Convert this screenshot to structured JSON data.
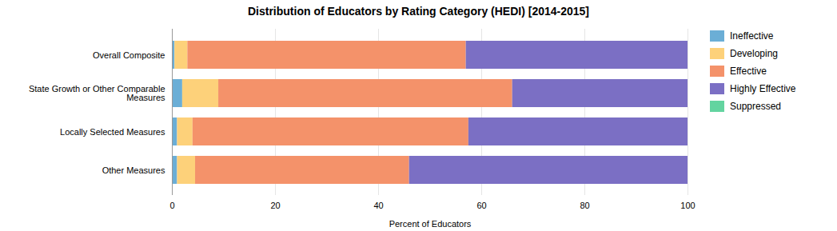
{
  "chart_data": {
    "type": "bar",
    "orientation": "horizontal",
    "stacked": true,
    "title": "Distribution of Educators by Rating Category (HEDI) [2014-2015]",
    "categories": [
      "Overall Composite",
      "State Growth or Other Comparable\nMeasures",
      "Locally Selected Measures",
      "Other Measures"
    ],
    "series": [
      {
        "name": "Ineffective",
        "color": "#6BAED6",
        "values": [
          0.5,
          2.0,
          1.0,
          1.0
        ]
      },
      {
        "name": "Developing",
        "color": "#FDD17A",
        "values": [
          2.5,
          7.0,
          3.0,
          3.5
        ]
      },
      {
        "name": "Effective",
        "color": "#F4926A",
        "values": [
          54.0,
          57.0,
          53.5,
          41.5
        ]
      },
      {
        "name": "Highly Effective",
        "color": "#7B6FC4",
        "values": [
          43.0,
          34.0,
          42.5,
          54.0
        ]
      },
      {
        "name": "Suppressed",
        "color": "#63D4A0",
        "values": [
          0.0,
          0.0,
          0.0,
          0.0
        ]
      }
    ],
    "xlabel": "Percent of Educators",
    "xlim": [
      0,
      100
    ],
    "xticks": [
      0,
      20,
      40,
      60,
      80,
      100
    ],
    "grid": true,
    "legend": "right"
  }
}
